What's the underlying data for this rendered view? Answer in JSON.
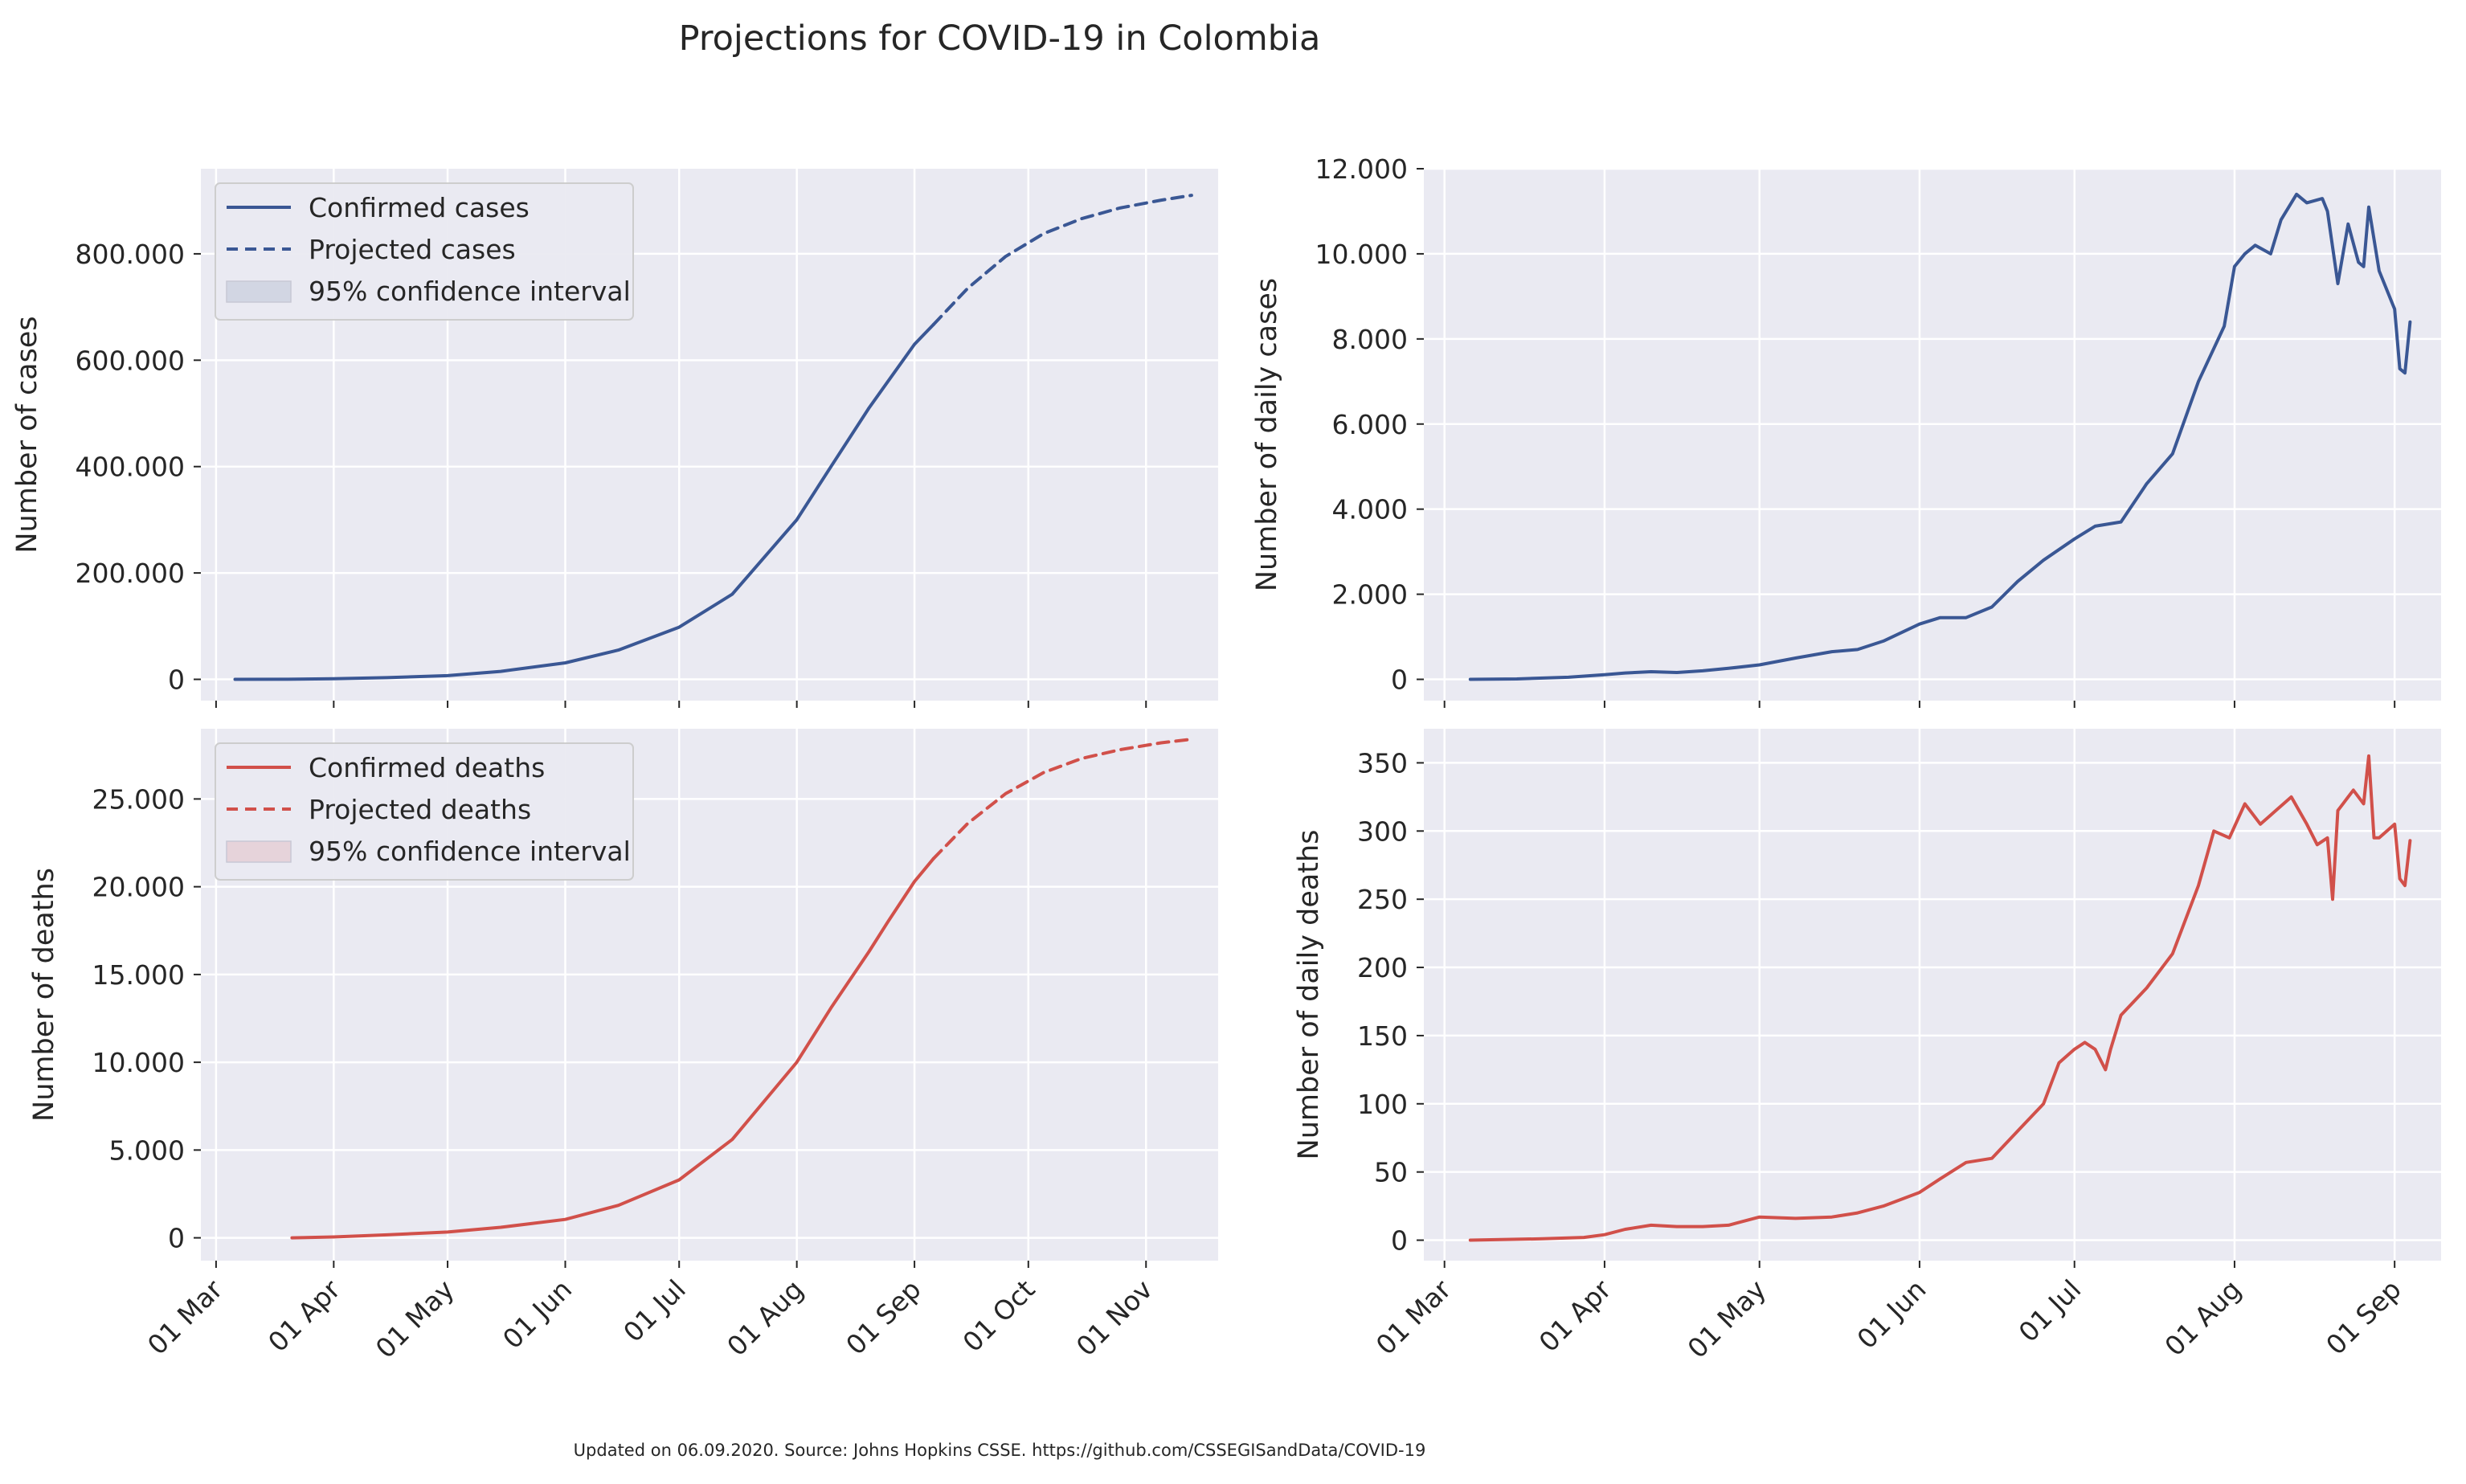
{
  "title": "Projections for COVID-19 in Colombia",
  "footer": "Updated on 06.09.2020. Source: Johns Hopkins CSSE. https://github.com/CSSEGISandData/COVID-19",
  "colors": {
    "blue": "#3a5794",
    "red": "#d1504a",
    "blue_fill": "#d2d6e3",
    "red_fill": "#e6d3da"
  },
  "chart_data": [
    {
      "id": "cases",
      "type": "line",
      "color": "#3a5794",
      "ylabel": "Number of cases",
      "xlim": [
        "2020-02-26",
        "2020-11-20"
      ],
      "ylim": [
        -40000,
        960000
      ],
      "yticks": [
        0,
        200000,
        400000,
        600000,
        800000
      ],
      "ytick_labels": [
        "0",
        "200.000",
        "400.000",
        "600.000",
        "800.000"
      ],
      "xticks": [
        "2020-03-01",
        "2020-04-01",
        "2020-05-01",
        "2020-06-01",
        "2020-07-01",
        "2020-08-01",
        "2020-09-01",
        "2020-10-01",
        "2020-11-01"
      ],
      "xtick_labels": [
        "01 Mar",
        "01 Apr",
        "01 May",
        "01 Jun",
        "01 Jul",
        "01 Aug",
        "01 Sep",
        "01 Oct",
        "01 Nov"
      ],
      "legend": {
        "position": "upper-left",
        "entries": [
          "Confirmed cases",
          "Projected cases",
          "95% confidence interval"
        ]
      },
      "series": [
        {
          "name": "Confirmed cases",
          "style": "solid",
          "x": [
            "2020-03-06",
            "2020-03-20",
            "2020-04-01",
            "2020-04-15",
            "2020-05-01",
            "2020-05-15",
            "2020-06-01",
            "2020-06-15",
            "2020-07-01",
            "2020-07-15",
            "2020-08-01",
            "2020-08-10",
            "2020-08-20",
            "2020-08-25",
            "2020-09-01",
            "2020-09-06"
          ],
          "y": [
            1,
            150,
            1100,
            3200,
            7000,
            15000,
            31000,
            55000,
            98000,
            160000,
            300000,
            400000,
            510000,
            560000,
            630000,
            667000
          ]
        },
        {
          "name": "Projected cases",
          "style": "dashed",
          "x": [
            "2020-09-06",
            "2020-09-15",
            "2020-09-25",
            "2020-10-05",
            "2020-10-15",
            "2020-10-25",
            "2020-11-05",
            "2020-11-13"
          ],
          "y": [
            667000,
            735000,
            795000,
            838000,
            866000,
            886000,
            901000,
            910000
          ]
        }
      ]
    },
    {
      "id": "daily_cases",
      "type": "line",
      "color": "#3a5794",
      "ylabel": "Number of daily cases",
      "xlim": [
        "2020-02-26",
        "2020-09-10"
      ],
      "ylim": [
        -500,
        12000
      ],
      "yticks": [
        0,
        2000,
        4000,
        6000,
        8000,
        10000,
        12000
      ],
      "ytick_labels": [
        "0",
        "2.000",
        "4.000",
        "6.000",
        "8.000",
        "10.000",
        "12.000"
      ],
      "xticks": [
        "2020-03-01",
        "2020-04-01",
        "2020-05-01",
        "2020-06-01",
        "2020-07-01",
        "2020-08-01",
        "2020-09-01"
      ],
      "xtick_labels": [
        "01 Mar",
        "01 Apr",
        "01 May",
        "01 Jun",
        "01 Jul",
        "01 Aug",
        "01 Sep"
      ],
      "series": [
        {
          "name": "",
          "style": "solid",
          "x": [
            "2020-03-06",
            "2020-03-15",
            "2020-03-25",
            "2020-04-01",
            "2020-04-05",
            "2020-04-10",
            "2020-04-15",
            "2020-04-20",
            "2020-04-25",
            "2020-05-01",
            "2020-05-08",
            "2020-05-15",
            "2020-05-20",
            "2020-05-25",
            "2020-06-01",
            "2020-06-05",
            "2020-06-10",
            "2020-06-15",
            "2020-06-20",
            "2020-06-25",
            "2020-07-01",
            "2020-07-05",
            "2020-07-10",
            "2020-07-15",
            "2020-07-20",
            "2020-07-25",
            "2020-07-30",
            "2020-08-01",
            "2020-08-03",
            "2020-08-05",
            "2020-08-08",
            "2020-08-10",
            "2020-08-13",
            "2020-08-15",
            "2020-08-18",
            "2020-08-19",
            "2020-08-21",
            "2020-08-23",
            "2020-08-25",
            "2020-08-26",
            "2020-08-27",
            "2020-08-29",
            "2020-09-01",
            "2020-09-02",
            "2020-09-03",
            "2020-09-04"
          ],
          "y": [
            0,
            10,
            50,
            110,
            150,
            180,
            160,
            200,
            260,
            340,
            500,
            650,
            700,
            900,
            1300,
            1450,
            1450,
            1700,
            2300,
            2800,
            3300,
            3600,
            3700,
            4600,
            5300,
            7000,
            8300,
            9700,
            10000,
            10200,
            10000,
            10800,
            11400,
            11200,
            11300,
            11000,
            9300,
            10700,
            9800,
            9700,
            11100,
            9600,
            8700,
            7300,
            7200,
            8400
          ]
        }
      ]
    },
    {
      "id": "deaths",
      "type": "line",
      "color": "#d1504a",
      "ylabel": "Number of deaths",
      "xlim": [
        "2020-02-26",
        "2020-11-20"
      ],
      "ylim": [
        -1300,
        29000
      ],
      "yticks": [
        0,
        5000,
        10000,
        15000,
        20000,
        25000
      ],
      "ytick_labels": [
        "0",
        "5.000",
        "10.000",
        "15.000",
        "20.000",
        "25.000"
      ],
      "xticks": [
        "2020-03-01",
        "2020-04-01",
        "2020-05-01",
        "2020-06-01",
        "2020-07-01",
        "2020-08-01",
        "2020-09-01",
        "2020-10-01",
        "2020-11-01"
      ],
      "xtick_labels": [
        "01 Mar",
        "01 Apr",
        "01 May",
        "01 Jun",
        "01 Jul",
        "01 Aug",
        "01 Sep",
        "01 Oct",
        "01 Nov"
      ],
      "legend": {
        "position": "upper-left",
        "entries": [
          "Confirmed deaths",
          "Projected deaths",
          "95% confidence interval"
        ]
      },
      "series": [
        {
          "name": "Confirmed deaths",
          "style": "solid",
          "x": [
            "2020-03-21",
            "2020-04-01",
            "2020-04-15",
            "2020-05-01",
            "2020-05-15",
            "2020-06-01",
            "2020-06-15",
            "2020-07-01",
            "2020-07-15",
            "2020-08-01",
            "2020-08-10",
            "2020-08-20",
            "2020-08-25",
            "2020-09-01",
            "2020-09-06"
          ],
          "y": [
            1,
            50,
            170,
            330,
            600,
            1050,
            1850,
            3300,
            5600,
            10000,
            13100,
            16300,
            18000,
            20300,
            21600
          ]
        },
        {
          "name": "Projected deaths",
          "style": "dashed",
          "x": [
            "2020-09-06",
            "2020-09-15",
            "2020-09-25",
            "2020-10-05",
            "2020-10-15",
            "2020-10-25",
            "2020-11-05",
            "2020-11-13"
          ],
          "y": [
            21600,
            23600,
            25300,
            26500,
            27300,
            27800,
            28200,
            28400
          ]
        }
      ]
    },
    {
      "id": "daily_deaths",
      "type": "line",
      "color": "#d1504a",
      "ylabel": "Number of daily deaths",
      "xlim": [
        "2020-02-26",
        "2020-09-10"
      ],
      "ylim": [
        -15,
        375
      ],
      "yticks": [
        0,
        50,
        100,
        150,
        200,
        250,
        300,
        350
      ],
      "ytick_labels": [
        "0",
        "50",
        "100",
        "150",
        "200",
        "250",
        "300",
        "350"
      ],
      "xticks": [
        "2020-03-01",
        "2020-04-01",
        "2020-05-01",
        "2020-06-01",
        "2020-07-01",
        "2020-08-01",
        "2020-09-01"
      ],
      "xtick_labels": [
        "01 Mar",
        "01 Apr",
        "01 May",
        "01 Jun",
        "01 Jul",
        "01 Aug",
        "01 Sep"
      ],
      "series": [
        {
          "name": "",
          "style": "solid",
          "x": [
            "2020-03-06",
            "2020-03-20",
            "2020-03-28",
            "2020-04-01",
            "2020-04-05",
            "2020-04-10",
            "2020-04-15",
            "2020-04-20",
            "2020-04-25",
            "2020-05-01",
            "2020-05-08",
            "2020-05-15",
            "2020-05-20",
            "2020-05-25",
            "2020-06-01",
            "2020-06-05",
            "2020-06-10",
            "2020-06-15",
            "2020-06-20",
            "2020-06-25",
            "2020-06-28",
            "2020-07-01",
            "2020-07-03",
            "2020-07-05",
            "2020-07-07",
            "2020-07-08",
            "2020-07-10",
            "2020-07-15",
            "2020-07-20",
            "2020-07-25",
            "2020-07-28",
            "2020-07-31",
            "2020-08-03",
            "2020-08-06",
            "2020-08-09",
            "2020-08-12",
            "2020-08-15",
            "2020-08-17",
            "2020-08-19",
            "2020-08-20",
            "2020-08-21",
            "2020-08-22",
            "2020-08-24",
            "2020-08-26",
            "2020-08-27",
            "2020-08-28",
            "2020-08-29",
            "2020-09-01",
            "2020-09-02",
            "2020-09-03",
            "2020-09-04"
          ],
          "y": [
            0,
            1,
            2,
            4,
            8,
            11,
            10,
            10,
            11,
            17,
            16,
            17,
            20,
            25,
            35,
            45,
            57,
            60,
            80,
            100,
            130,
            140,
            145,
            140,
            125,
            140,
            165,
            185,
            210,
            260,
            300,
            295,
            320,
            305,
            315,
            325,
            305,
            290,
            295,
            250,
            315,
            320,
            330,
            320,
            355,
            295,
            295,
            305,
            265,
            260,
            293
          ]
        }
      ]
    }
  ]
}
